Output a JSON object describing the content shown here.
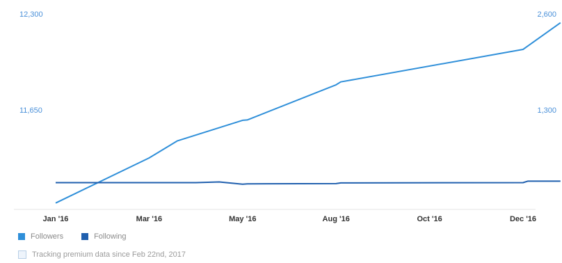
{
  "chart_data": {
    "type": "line",
    "x_categories": [
      "Jan '16",
      "Mar '16",
      "May '16",
      "Aug '16",
      "Oct '16",
      "Dec '16"
    ],
    "y_left": {
      "ticks": [
        "12,300",
        "11,650"
      ],
      "range": [
        11000,
        12300
      ]
    },
    "y_right": {
      "ticks": [
        "2,600",
        "1,300"
      ],
      "range": [
        0,
        2600
      ]
    },
    "series": [
      {
        "name": "Followers",
        "axis": "left",
        "color": "#2f8fd9",
        "points": [
          [
            0,
            11020
          ],
          [
            1,
            11325
          ],
          [
            1.3,
            11440
          ],
          [
            2.0,
            11580
          ],
          [
            2.05,
            11582
          ],
          [
            3.0,
            11820
          ],
          [
            3.05,
            11840
          ],
          [
            5.0,
            12060
          ],
          [
            5.4,
            12240
          ]
        ]
      },
      {
        "name": "Following",
        "axis": "right",
        "color": "#1f5fae",
        "points": [
          [
            0,
            316
          ],
          [
            1.5,
            316
          ],
          [
            1.75,
            325
          ],
          [
            2.0,
            295
          ],
          [
            2.05,
            300
          ],
          [
            3.0,
            302
          ],
          [
            3.05,
            312
          ],
          [
            5.0,
            316
          ],
          [
            5.05,
            335
          ],
          [
            5.4,
            335
          ]
        ]
      }
    ],
    "grid": false,
    "legend_position": "bottom-left"
  },
  "legend": {
    "followers_label": "Followers",
    "following_label": "Following"
  },
  "note": {
    "text": "Tracking premium data since Feb 22nd, 2017"
  }
}
